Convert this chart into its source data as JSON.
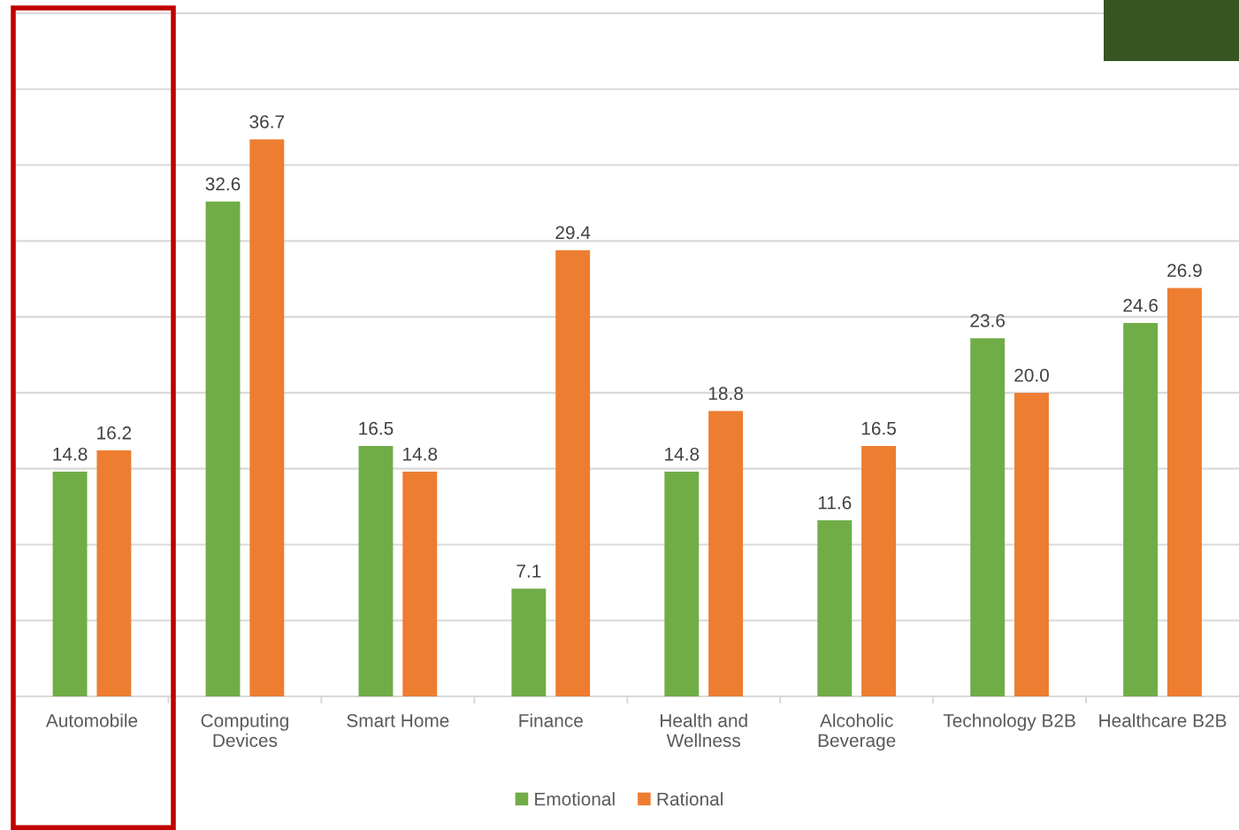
{
  "chart_data": {
    "type": "bar",
    "categories": [
      "Automobile",
      "Computing\nDevices",
      "Smart Home",
      "Finance",
      "Health and\nWellness",
      "Alcoholic\nBeverage",
      "Technology B2B",
      "Healthcare B2B"
    ],
    "series": [
      {
        "name": "Emotional",
        "color": "#70ad47",
        "values": [
          14.8,
          32.6,
          16.5,
          7.1,
          14.8,
          11.6,
          23.6,
          24.6
        ],
        "value_labels": [
          "14.8",
          "32.6",
          "16.5",
          "7.1",
          "14.8",
          "11.6",
          "23.6",
          "24.6"
        ]
      },
      {
        "name": "Rational",
        "color": "#ed7d31",
        "values": [
          16.2,
          36.7,
          14.8,
          29.4,
          18.8,
          16.5,
          20.0,
          26.9
        ],
        "value_labels": [
          "16.2",
          "36.7",
          "14.8",
          "29.4",
          "18.8",
          "16.5",
          "20.0",
          "26.9"
        ]
      }
    ],
    "tick_labels": "x",
    "grid": "y",
    "legend": "bottom"
  }
}
